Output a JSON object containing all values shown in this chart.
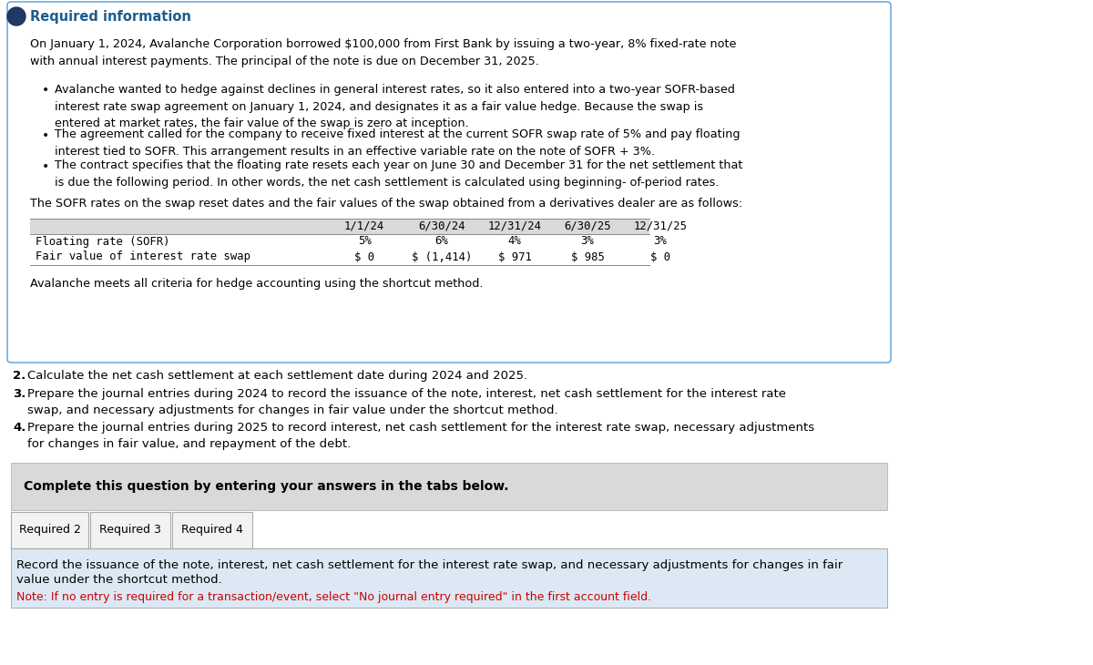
{
  "bg_color": "#ffffff",
  "page_bg": "#ffffff",
  "title": "Required information",
  "title_color": "#1f5c8b",
  "main_text_1": "On January 1, 2024, Avalanche Corporation borrowed $100,000 from First Bank by issuing a two-year, 8% fixed-rate note\nwith annual interest payments. The principal of the note is due on December 31, 2025.",
  "bullets": [
    "Avalanche wanted to hedge against declines in general interest rates, so it also entered into a two-year SOFR-based\ninterest rate swap agreement on January 1, 2024, and designates it as a fair value hedge. Because the swap is\nentered at market rates, the fair value of the swap is zero at inception.",
    "The agreement called for the company to receive fixed interest at the current SOFR swap rate of 5% and pay floating\ninterest tied to SOFR. This arrangement results in an effective variable rate on the note of SOFR + 3%.",
    "The contract specifies that the floating rate resets each year on June 30 and December 31 for the net settlement that\nis due the following period. In other words, the net cash settlement is calculated using beginning- of-period rates."
  ],
  "table_intro": "The SOFR rates on the swap reset dates and the fair values of the swap obtained from a derivatives dealer are as follows:",
  "table_cols": [
    "1/1/24",
    "6/30/24",
    "12/31/24",
    "6/30/25",
    "12/31/25"
  ],
  "table_row1_label": "Floating rate (SOFR)",
  "table_row1_vals": [
    "5%",
    "6%",
    "4%",
    "3%",
    "3%"
  ],
  "table_row2_label": "Fair value of interest rate swap",
  "table_row2_vals": [
    "$ 0",
    "$ (1,414)",
    "$ 971",
    "$ 985",
    "$ 0"
  ],
  "closing_text": "Avalanche meets all criteria for hedge accounting using the shortcut method.",
  "numbered_items": [
    {
      "num": "2.",
      "text": "Calculate the net cash settlement at each settlement date during 2024 and 2025."
    },
    {
      "num": "3.",
      "text": "Prepare the journal entries during 2024 to record the issuance of the note, interest, net cash settlement for the interest rate\nswap, and necessary adjustments for changes in fair value under the shortcut method."
    },
    {
      "num": "4.",
      "text": "Prepare the journal entries during 2025 to record interest, net cash settlement for the interest rate swap, necessary adjustments\nfor changes in fair value, and repayment of the debt."
    }
  ],
  "complete_box_text": "Complete this question by entering your answers in the tabs below.",
  "tab_labels": [
    "Required 2",
    "Required 3",
    "Required 4"
  ],
  "bottom_text_1": "Record the issuance of the note, interest, net cash settlement for the interest rate swap, and necessary adjustments for changes in fair",
  "bottom_text_2": "value under the shortcut method.",
  "bottom_note_color": "#cc0000",
  "bottom_note": "Note: If no entry is required for a transaction/event, select \"No journal entry required\" in the first account field.",
  "box_border_color": "#5b9bd5",
  "table_header_bg": "#d9d9d9",
  "complete_box_bg": "#d9d9d9",
  "tab_bg": "#f2f2f2",
  "bottom_section_bg": "#dce9f5",
  "top_circle_color": "#1f3864"
}
